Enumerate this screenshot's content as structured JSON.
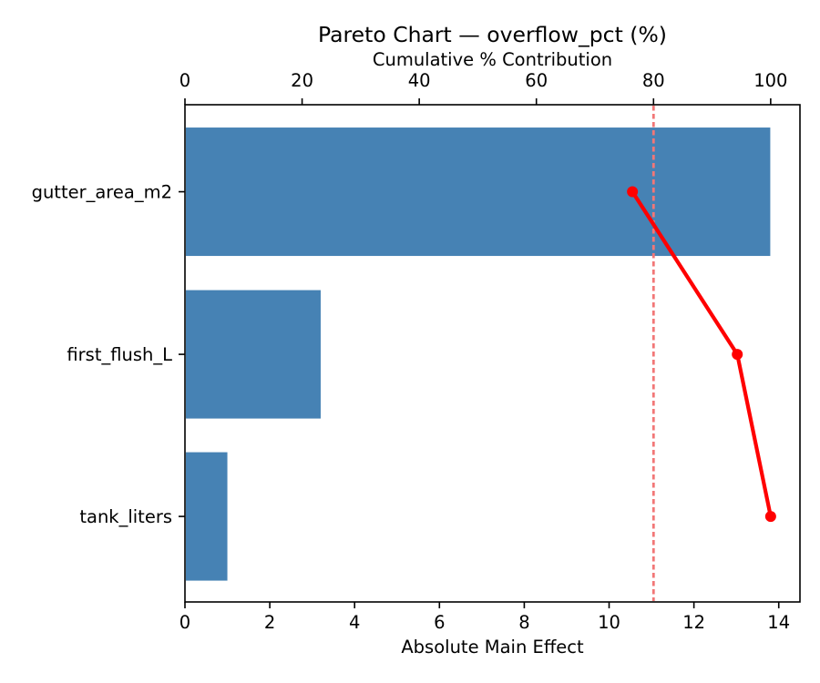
{
  "chart_data": {
    "type": "bar",
    "variant": "pareto",
    "orientation": "horizontal",
    "title": "Pareto Chart — overflow_pct (%)",
    "top_axis": {
      "label": "Cumulative % Contribution",
      "ticks": [
        0,
        20,
        40,
        60,
        80,
        100
      ],
      "lim": [
        0,
        105
      ]
    },
    "bottom_axis": {
      "label": "Absolute Main Effect",
      "ticks": [
        0,
        2,
        4,
        6,
        8,
        10,
        12,
        14
      ],
      "lim": [
        0,
        14.5
      ]
    },
    "categories": [
      "gutter_area_m2",
      "first_flush_L",
      "tank_liters"
    ],
    "series": [
      {
        "name": "Absolute Main Effect",
        "type": "bar",
        "values": [
          13.8,
          3.2,
          1.0
        ]
      },
      {
        "name": "Cumulative % Contribution",
        "type": "line",
        "values": [
          76.4,
          94.3,
          100.0
        ]
      }
    ],
    "threshold_line": {
      "value": 80,
      "axis": "top",
      "style": "dashed"
    },
    "grid": false,
    "legend": "none",
    "colors": {
      "bar": "#4682b4",
      "cumulative_line": "#ff0000",
      "threshold": "#f27777",
      "spine": "#000000",
      "text": "#000000",
      "background": "#ffffff"
    }
  }
}
